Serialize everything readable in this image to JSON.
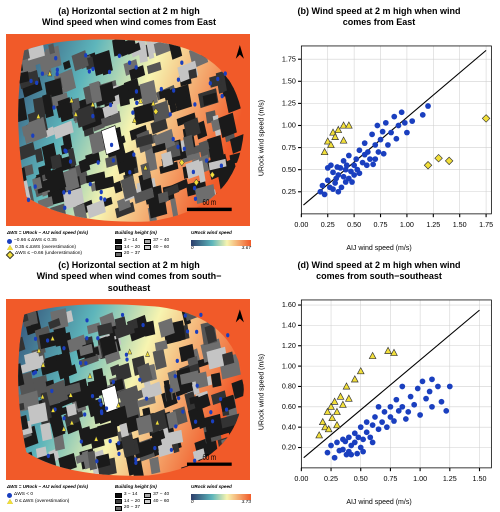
{
  "colors": {
    "ramp_low": "#2c3e6b",
    "ramp_mid1": "#5db5bb",
    "ramp_mid2": "#f7f4b0",
    "ramp_high": "#f15a29",
    "building_dark": "#1a1a1a",
    "building_grey": "#6e6e6e",
    "building_light": "#c4c4c4",
    "point_blue": "#1a3fbf",
    "point_yellow_fill": "#f2df3a",
    "point_yellow_stroke": "#333333",
    "axis": "#000000",
    "grid": "#d0d0d0",
    "bg": "#ffffff"
  },
  "panel_a": {
    "title_line1": "(a) Horizontal section at 2 m high",
    "title_line2": "Wind speed when wind comes from East",
    "scale_label": "60 m",
    "legend_ws": {
      "head": "ΔWS = URock − AIJ wind speed (m/s)",
      "items": [
        {
          "symbol": "circle",
          "color": "#1a3fbf",
          "label": "−0.66 ≤ ΔWS ≤ 0.35"
        },
        {
          "symbol": "triangle",
          "color": "#f2df3a",
          "label": "0.35 ≤ ΔWS (overestimation)"
        },
        {
          "symbol": "diamond",
          "color": "#f2df3a",
          "label": "ΔWS ≤ −0.66 (underestimation)"
        }
      ]
    },
    "legend_bh": {
      "head": "Building height (m)",
      "items": [
        {
          "color": "#0d0d0d",
          "label": "3 − 14"
        },
        {
          "color": "#3d3d3d",
          "label": "14 − 20"
        },
        {
          "color": "#6e6e6e",
          "label": "20 − 37"
        },
        {
          "color": "#a8a8a8",
          "label": "37 − 40"
        },
        {
          "color": "#d0d0d0",
          "label": "40 − 60"
        }
      ]
    },
    "legend_ur": {
      "head": "URock wind speed",
      "min": "0",
      "max": "3.67"
    }
  },
  "panel_b": {
    "title_line1": "(b) Wind speed at 2 m high when wind",
    "title_line2": "comes from East",
    "ylabel": "URock  wind speed (m/s)",
    "xlabel": "AIJ  wind speed (m/s)",
    "xlim": [
      0,
      1.8
    ],
    "ylim": [
      0,
      1.9
    ],
    "xticks": [
      0.0,
      0.25,
      0.5,
      0.75,
      1.0,
      1.25,
      1.5,
      1.75
    ],
    "yticks": [
      0.25,
      0.5,
      0.75,
      1.0,
      1.25,
      1.5,
      1.75
    ],
    "diag": [
      [
        0.02,
        0.1
      ],
      [
        1.75,
        1.85
      ]
    ],
    "points_blue": [
      [
        0.18,
        0.25
      ],
      [
        0.2,
        0.32
      ],
      [
        0.22,
        0.22
      ],
      [
        0.25,
        0.38
      ],
      [
        0.25,
        0.52
      ],
      [
        0.27,
        0.3
      ],
      [
        0.28,
        0.55
      ],
      [
        0.3,
        0.28
      ],
      [
        0.3,
        0.47
      ],
      [
        0.32,
        0.35
      ],
      [
        0.33,
        0.4
      ],
      [
        0.34,
        0.53
      ],
      [
        0.35,
        0.44
      ],
      [
        0.35,
        0.25
      ],
      [
        0.37,
        0.52
      ],
      [
        0.38,
        0.3
      ],
      [
        0.4,
        0.42
      ],
      [
        0.4,
        0.6
      ],
      [
        0.42,
        0.36
      ],
      [
        0.42,
        0.5
      ],
      [
        0.43,
        0.55
      ],
      [
        0.45,
        0.4
      ],
      [
        0.45,
        0.66
      ],
      [
        0.47,
        0.48
      ],
      [
        0.48,
        0.36
      ],
      [
        0.5,
        0.55
      ],
      [
        0.5,
        0.44
      ],
      [
        0.52,
        0.62
      ],
      [
        0.53,
        0.5
      ],
      [
        0.55,
        0.72
      ],
      [
        0.55,
        0.46
      ],
      [
        0.58,
        0.58
      ],
      [
        0.6,
        0.67
      ],
      [
        0.6,
        0.8
      ],
      [
        0.62,
        0.55
      ],
      [
        0.63,
        0.7
      ],
      [
        0.65,
        0.62
      ],
      [
        0.67,
        0.9
      ],
      [
        0.68,
        0.56
      ],
      [
        0.7,
        0.78
      ],
      [
        0.7,
        0.62
      ],
      [
        0.72,
        1.0
      ],
      [
        0.73,
        0.7
      ],
      [
        0.75,
        0.84
      ],
      [
        0.77,
        0.93
      ],
      [
        0.78,
        0.68
      ],
      [
        0.8,
        1.03
      ],
      [
        0.82,
        0.78
      ],
      [
        0.85,
        0.92
      ],
      [
        0.88,
        1.1
      ],
      [
        0.9,
        0.85
      ],
      [
        0.92,
        1.0
      ],
      [
        0.95,
        1.15
      ],
      [
        0.98,
        1.03
      ],
      [
        1.0,
        0.92
      ],
      [
        1.05,
        1.05
      ],
      [
        1.15,
        1.12
      ],
      [
        1.2,
        1.22
      ]
    ],
    "points_tri": [
      [
        0.22,
        0.7
      ],
      [
        0.25,
        0.82
      ],
      [
        0.28,
        0.78
      ],
      [
        0.3,
        0.92
      ],
      [
        0.32,
        0.87
      ],
      [
        0.35,
        0.95
      ],
      [
        0.4,
        1.0
      ],
      [
        0.4,
        0.83
      ],
      [
        0.45,
        1.0
      ]
    ],
    "points_diam": [
      [
        1.2,
        0.55
      ],
      [
        1.4,
        0.6
      ],
      [
        1.3,
        0.63
      ],
      [
        1.75,
        1.08
      ]
    ]
  },
  "panel_c": {
    "title_line1": "(c) Horizontal section at 2 m high",
    "title_line2": "Wind speed when wind comes from south−",
    "title_line3": "southeast",
    "scale_label": "60 m",
    "legend_ws": {
      "head": "ΔWS = URock − AIJ wind speed (m/s)",
      "items": [
        {
          "symbol": "circle",
          "color": "#1a3fbf",
          "label": "ΔWS < 0"
        },
        {
          "symbol": "triangle",
          "color": "#f2df3a",
          "label": "0 ≤ ΔWS (overestimation)"
        }
      ]
    },
    "legend_bh": {
      "head": "Building height (m)",
      "items": [
        {
          "color": "#0d0d0d",
          "label": "3 − 14"
        },
        {
          "color": "#3d3d3d",
          "label": "14 − 20"
        },
        {
          "color": "#6e6e6e",
          "label": "20 − 37"
        },
        {
          "color": "#a8a8a8",
          "label": "37 − 40"
        },
        {
          "color": "#d0d0d0",
          "label": "40 − 60"
        }
      ]
    },
    "legend_ur": {
      "head": "URock wind speed",
      "min": "0",
      "max": "3.73"
    }
  },
  "panel_d": {
    "title_line1": "(d) Wind speed at 2 m high when wind",
    "title_line2": "comes from south−southeast",
    "ylabel": "URock  wind speed (m/s)",
    "xlabel": "AIJ  wind speed (m/s)",
    "xlim": [
      0,
      1.6
    ],
    "ylim": [
      0,
      1.65
    ],
    "xticks": [
      0.0,
      0.25,
      0.5,
      0.75,
      1.0,
      1.25,
      1.5
    ],
    "yticks": [
      0.2,
      0.4,
      0.6,
      0.8,
      1.0,
      1.2,
      1.4,
      1.6
    ],
    "diag": [
      [
        0.02,
        0.1
      ],
      [
        1.5,
        1.55
      ]
    ],
    "points_blue": [
      [
        0.22,
        0.15
      ],
      [
        0.25,
        0.22
      ],
      [
        0.28,
        0.1
      ],
      [
        0.3,
        0.25
      ],
      [
        0.32,
        0.17
      ],
      [
        0.35,
        0.28
      ],
      [
        0.35,
        0.18
      ],
      [
        0.37,
        0.26
      ],
      [
        0.4,
        0.3
      ],
      [
        0.4,
        0.16
      ],
      [
        0.42,
        0.22
      ],
      [
        0.45,
        0.34
      ],
      [
        0.45,
        0.25
      ],
      [
        0.48,
        0.3
      ],
      [
        0.5,
        0.2
      ],
      [
        0.5,
        0.4
      ],
      [
        0.52,
        0.28
      ],
      [
        0.55,
        0.35
      ],
      [
        0.55,
        0.45
      ],
      [
        0.58,
        0.3
      ],
      [
        0.6,
        0.42
      ],
      [
        0.6,
        0.25
      ],
      [
        0.62,
        0.5
      ],
      [
        0.65,
        0.38
      ],
      [
        0.65,
        0.6
      ],
      [
        0.68,
        0.45
      ],
      [
        0.7,
        0.55
      ],
      [
        0.72,
        0.4
      ],
      [
        0.75,
        0.6
      ],
      [
        0.75,
        0.5
      ],
      [
        0.78,
        0.46
      ],
      [
        0.8,
        0.67
      ],
      [
        0.82,
        0.56
      ],
      [
        0.85,
        0.6
      ],
      [
        0.85,
        0.8
      ],
      [
        0.88,
        0.48
      ],
      [
        0.9,
        0.55
      ],
      [
        0.92,
        0.7
      ],
      [
        0.95,
        0.62
      ],
      [
        0.98,
        0.78
      ],
      [
        1.0,
        0.52
      ],
      [
        1.02,
        0.85
      ],
      [
        1.05,
        0.68
      ],
      [
        1.08,
        0.75
      ],
      [
        1.1,
        0.87
      ],
      [
        1.1,
        0.6
      ],
      [
        1.15,
        0.8
      ],
      [
        1.18,
        0.65
      ],
      [
        1.22,
        0.56
      ],
      [
        1.25,
        0.8
      ],
      [
        0.38,
        0.13
      ],
      [
        0.42,
        0.13
      ],
      [
        0.47,
        0.14
      ],
      [
        0.52,
        0.16
      ]
    ],
    "points_tri": [
      [
        0.15,
        0.32
      ],
      [
        0.18,
        0.45
      ],
      [
        0.2,
        0.4
      ],
      [
        0.22,
        0.55
      ],
      [
        0.23,
        0.38
      ],
      [
        0.25,
        0.6
      ],
      [
        0.26,
        0.49
      ],
      [
        0.28,
        0.65
      ],
      [
        0.3,
        0.55
      ],
      [
        0.3,
        0.42
      ],
      [
        0.33,
        0.7
      ],
      [
        0.35,
        0.62
      ],
      [
        0.38,
        0.8
      ],
      [
        0.4,
        0.68
      ],
      [
        0.45,
        0.87
      ],
      [
        0.5,
        0.95
      ],
      [
        0.6,
        1.1
      ],
      [
        0.73,
        1.15
      ],
      [
        0.78,
        1.13
      ]
    ],
    "points_diam": []
  }
}
